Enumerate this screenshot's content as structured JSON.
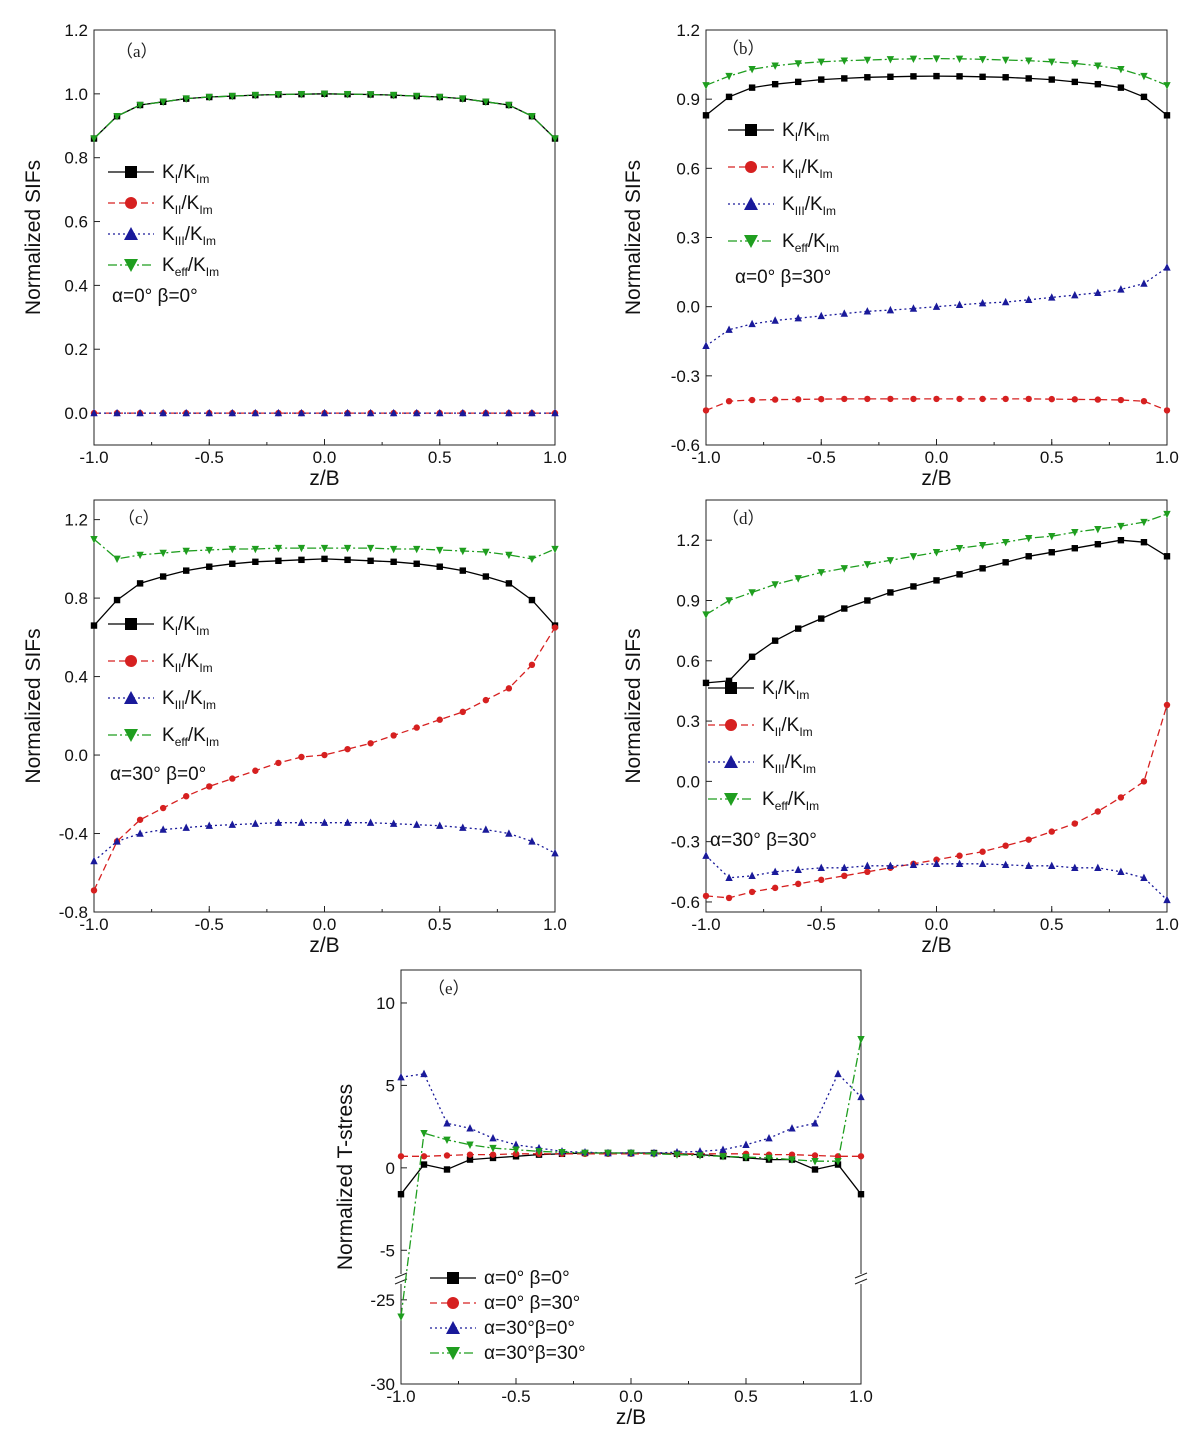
{
  "chart_data": [
    {
      "id": "a",
      "type": "line",
      "panel_label": "（a）",
      "xlabel": "z/B",
      "ylabel": "Normalized SIFs",
      "xlim": [
        -1.0,
        1.0
      ],
      "ylim": [
        -0.1,
        1.2
      ],
      "xticks": [
        "-1.0",
        "-0.5",
        "0.0",
        "0.5",
        "1.0"
      ],
      "yticks": [
        "0.0",
        "0.2",
        "0.4",
        "0.6",
        "0.8",
        "1.0",
        "1.2"
      ],
      "ytick_values": [
        0.0,
        0.2,
        0.4,
        0.6,
        0.8,
        1.0,
        1.2
      ],
      "annotation": "α=0° β=0°",
      "legend_position": "middle-left",
      "x": [
        -1.0,
        -0.9,
        -0.8,
        -0.7,
        -0.6,
        -0.5,
        -0.4,
        -0.3,
        -0.2,
        -0.1,
        0.0,
        0.1,
        0.2,
        0.3,
        0.4,
        0.5,
        0.6,
        0.7,
        0.8,
        0.9,
        1.0
      ],
      "series": [
        {
          "name": "KI/KIm",
          "base": "K",
          "sub": "I/K",
          "sub2": "Im",
          "color": "#000000",
          "dash": "",
          "marker": "square",
          "values": [
            0.86,
            0.93,
            0.965,
            0.975,
            0.985,
            0.99,
            0.993,
            0.996,
            0.998,
            0.999,
            1.0,
            0.999,
            0.998,
            0.996,
            0.993,
            0.99,
            0.985,
            0.975,
            0.965,
            0.93,
            0.86
          ]
        },
        {
          "name": "KII/KIm",
          "base": "K",
          "sub": "II/K",
          "sub2": "Im",
          "color": "#d62020",
          "dash": "7,4",
          "marker": "circle",
          "values": [
            0,
            0,
            0,
            0,
            0,
            0,
            0,
            0,
            0,
            0,
            0,
            0,
            0,
            0,
            0,
            0,
            0,
            0,
            0,
            0,
            0
          ]
        },
        {
          "name": "KIII/KIm",
          "base": "K",
          "sub": "III/K",
          "sub2": "Im",
          "color": "#1a1a9a",
          "dash": "2,3",
          "marker": "triangle",
          "values": [
            0,
            0,
            0,
            0,
            0,
            0,
            0,
            0,
            0,
            0,
            0,
            0,
            0,
            0,
            0,
            0,
            0,
            0,
            0,
            0,
            0
          ]
        },
        {
          "name": "Keff/KIm",
          "base": "K",
          "sub": "eff/K",
          "sub2": "Im",
          "color": "#1f9e1f",
          "dash": "9,3,2,3",
          "marker": "triangle-down",
          "values": [
            0.86,
            0.93,
            0.965,
            0.975,
            0.985,
            0.99,
            0.993,
            0.996,
            0.998,
            0.999,
            1.0,
            0.999,
            0.998,
            0.996,
            0.993,
            0.99,
            0.985,
            0.975,
            0.965,
            0.93,
            0.86
          ]
        }
      ]
    },
    {
      "id": "b",
      "type": "line",
      "panel_label": "（b）",
      "xlabel": "z/B",
      "ylabel": "Normalized SIFs",
      "xlim": [
        -1.0,
        1.0
      ],
      "ylim": [
        -0.6,
        1.2
      ],
      "xticks": [
        "-1.0",
        "-0.5",
        "0.0",
        "0.5",
        "1.0"
      ],
      "yticks": [
        "-0.6",
        "-0.3",
        "0.0",
        "0.3",
        "0.6",
        "0.9",
        "1.2"
      ],
      "ytick_values": [
        -0.6,
        -0.3,
        0.0,
        0.3,
        0.6,
        0.9,
        1.2
      ],
      "annotation": "α=0° β=30°",
      "legend_position": "middle-left",
      "x": [
        -1.0,
        -0.9,
        -0.8,
        -0.7,
        -0.6,
        -0.5,
        -0.4,
        -0.3,
        -0.2,
        -0.1,
        0.0,
        0.1,
        0.2,
        0.3,
        0.4,
        0.5,
        0.6,
        0.7,
        0.8,
        0.9,
        1.0
      ],
      "series": [
        {
          "name": "KI/KIm",
          "base": "K",
          "sub": "I/K",
          "sub2": "Im",
          "color": "#000000",
          "dash": "",
          "marker": "square",
          "values": [
            0.83,
            0.91,
            0.95,
            0.965,
            0.975,
            0.985,
            0.99,
            0.995,
            0.997,
            0.999,
            1.0,
            0.999,
            0.997,
            0.995,
            0.99,
            0.985,
            0.975,
            0.965,
            0.95,
            0.91,
            0.83
          ]
        },
        {
          "name": "KII/KIm",
          "base": "K",
          "sub": "II/K",
          "sub2": "Im",
          "color": "#d62020",
          "dash": "7,4",
          "marker": "circle",
          "values": [
            -0.45,
            -0.41,
            -0.405,
            -0.403,
            -0.402,
            -0.401,
            -0.4,
            -0.4,
            -0.4,
            -0.4,
            -0.4,
            -0.4,
            -0.4,
            -0.4,
            -0.4,
            -0.401,
            -0.402,
            -0.403,
            -0.405,
            -0.41,
            -0.45
          ]
        },
        {
          "name": "KIII/KIm",
          "base": "K",
          "sub": "III/K",
          "sub2": "Im",
          "color": "#1a1a9a",
          "dash": "2,3",
          "marker": "triangle",
          "values": [
            -0.17,
            -0.1,
            -0.075,
            -0.06,
            -0.05,
            -0.04,
            -0.03,
            -0.02,
            -0.015,
            -0.008,
            0.0,
            0.008,
            0.015,
            0.02,
            0.03,
            0.04,
            0.05,
            0.06,
            0.075,
            0.1,
            0.17
          ]
        },
        {
          "name": "Keff/KIm",
          "base": "K",
          "sub": "eff/K",
          "sub2": "Im",
          "color": "#1f9e1f",
          "dash": "9,3,2,3",
          "marker": "triangle-down",
          "values": [
            0.96,
            1.0,
            1.03,
            1.045,
            1.055,
            1.062,
            1.067,
            1.07,
            1.073,
            1.075,
            1.076,
            1.075,
            1.073,
            1.07,
            1.067,
            1.062,
            1.055,
            1.045,
            1.03,
            1.0,
            0.96
          ]
        }
      ]
    },
    {
      "id": "c",
      "type": "line",
      "panel_label": "（c）",
      "xlabel": "z/B",
      "ylabel": "Normalized SIFs",
      "xlim": [
        -1.0,
        1.0
      ],
      "ylim": [
        -0.8,
        1.3
      ],
      "xticks": [
        "-1.0",
        "-0.5",
        "0.0",
        "0.5",
        "1.0"
      ],
      "yticks": [
        "-0.8",
        "-0.4",
        "0.0",
        "0.4",
        "0.8",
        "1.2"
      ],
      "ytick_values": [
        -0.8,
        -0.4,
        0.0,
        0.4,
        0.8,
        1.2
      ],
      "annotation": "α=30° β=0°",
      "legend_position": "middle-left",
      "x": [
        -1.0,
        -0.9,
        -0.8,
        -0.7,
        -0.6,
        -0.5,
        -0.4,
        -0.3,
        -0.2,
        -0.1,
        0.0,
        0.1,
        0.2,
        0.3,
        0.4,
        0.5,
        0.6,
        0.7,
        0.8,
        0.9,
        1.0
      ],
      "series": [
        {
          "name": "KI/KIm",
          "base": "K",
          "sub": "I/K",
          "sub2": "Im",
          "color": "#000000",
          "dash": "",
          "marker": "square",
          "values": [
            0.66,
            0.79,
            0.875,
            0.91,
            0.94,
            0.96,
            0.975,
            0.985,
            0.99,
            0.995,
            1.0,
            0.995,
            0.99,
            0.985,
            0.975,
            0.96,
            0.94,
            0.91,
            0.875,
            0.79,
            0.66
          ]
        },
        {
          "name": "KII/KIm",
          "base": "K",
          "sub": "II/K",
          "sub2": "Im",
          "color": "#d62020",
          "dash": "7,4",
          "marker": "circle",
          "values": [
            -0.69,
            -0.44,
            -0.33,
            -0.27,
            -0.21,
            -0.16,
            -0.12,
            -0.08,
            -0.04,
            -0.01,
            0.0,
            0.03,
            0.06,
            0.1,
            0.14,
            0.18,
            0.22,
            0.28,
            0.34,
            0.46,
            0.65
          ]
        },
        {
          "name": "KIII/KIm",
          "base": "K",
          "sub": "III/K",
          "sub2": "Im",
          "color": "#1a1a9a",
          "dash": "2,3",
          "marker": "triangle",
          "values": [
            -0.54,
            -0.44,
            -0.4,
            -0.38,
            -0.37,
            -0.36,
            -0.355,
            -0.35,
            -0.345,
            -0.345,
            -0.345,
            -0.345,
            -0.345,
            -0.35,
            -0.355,
            -0.36,
            -0.37,
            -0.38,
            -0.4,
            -0.44,
            -0.5
          ]
        },
        {
          "name": "Keff/KIm",
          "base": "K",
          "sub": "eff/K",
          "sub2": "Im",
          "color": "#1f9e1f",
          "dash": "9,3,2,3",
          "marker": "triangle-down",
          "values": [
            1.1,
            1.0,
            1.02,
            1.03,
            1.04,
            1.045,
            1.05,
            1.05,
            1.055,
            1.055,
            1.055,
            1.055,
            1.055,
            1.05,
            1.05,
            1.045,
            1.04,
            1.035,
            1.02,
            1.0,
            1.05
          ]
        }
      ]
    },
    {
      "id": "d",
      "type": "line",
      "panel_label": "（d）",
      "xlabel": "z/B",
      "ylabel": "Normalized SIFs",
      "xlim": [
        -1.0,
        1.0
      ],
      "ylim": [
        -0.65,
        1.4
      ],
      "xticks": [
        "-1.0",
        "-0.5",
        "0.0",
        "0.5",
        "1.0"
      ],
      "yticks": [
        "-0.6",
        "-0.3",
        "0.0",
        "0.3",
        "0.6",
        "0.9",
        "1.2"
      ],
      "ytick_values": [
        -0.6,
        -0.3,
        0.0,
        0.3,
        0.6,
        0.9,
        1.2
      ],
      "annotation": "α=30° β=30°",
      "legend_position": "middle-left",
      "x": [
        -1.0,
        -0.9,
        -0.8,
        -0.7,
        -0.6,
        -0.5,
        -0.4,
        -0.3,
        -0.2,
        -0.1,
        0.0,
        0.1,
        0.2,
        0.3,
        0.4,
        0.5,
        0.6,
        0.7,
        0.8,
        0.9,
        1.0
      ],
      "series": [
        {
          "name": "KI/KIm",
          "base": "K",
          "sub": "I/K",
          "sub2": "Im",
          "color": "#000000",
          "dash": "",
          "marker": "square",
          "values": [
            0.49,
            0.5,
            0.62,
            0.7,
            0.76,
            0.81,
            0.86,
            0.9,
            0.94,
            0.97,
            1.0,
            1.03,
            1.06,
            1.09,
            1.12,
            1.14,
            1.16,
            1.18,
            1.2,
            1.19,
            1.12
          ]
        },
        {
          "name": "KII/KIm",
          "base": "K",
          "sub": "II/K",
          "sub2": "Im",
          "color": "#d62020",
          "dash": "7,4",
          "marker": "circle",
          "values": [
            -0.57,
            -0.58,
            -0.55,
            -0.53,
            -0.51,
            -0.49,
            -0.47,
            -0.45,
            -0.43,
            -0.41,
            -0.39,
            -0.37,
            -0.35,
            -0.32,
            -0.29,
            -0.25,
            -0.21,
            -0.15,
            -0.08,
            0.0,
            0.38
          ]
        },
        {
          "name": "KIII/KIm",
          "base": "K",
          "sub": "III/K",
          "sub2": "Im",
          "color": "#1a1a9a",
          "dash": "2,3",
          "marker": "triangle",
          "values": [
            -0.37,
            -0.48,
            -0.47,
            -0.45,
            -0.44,
            -0.43,
            -0.43,
            -0.42,
            -0.42,
            -0.415,
            -0.41,
            -0.41,
            -0.41,
            -0.415,
            -0.42,
            -0.42,
            -0.43,
            -0.43,
            -0.45,
            -0.48,
            -0.59
          ]
        },
        {
          "name": "Keff/KIm",
          "base": "K",
          "sub": "eff/K",
          "sub2": "Im",
          "color": "#1f9e1f",
          "dash": "9,3,2,3",
          "marker": "triangle-down",
          "values": [
            0.83,
            0.9,
            0.94,
            0.98,
            1.01,
            1.04,
            1.06,
            1.08,
            1.1,
            1.12,
            1.14,
            1.16,
            1.175,
            1.19,
            1.21,
            1.22,
            1.24,
            1.255,
            1.27,
            1.29,
            1.33
          ]
        }
      ]
    },
    {
      "id": "e",
      "type": "line",
      "panel_label": "（e）",
      "xlabel": "z/B",
      "ylabel": "Normalized T-stress",
      "xlim": [
        -1.0,
        1.0
      ],
      "broken_y_axis": true,
      "upper_ylim": [
        -6.5,
        12
      ],
      "lower_ylim": [
        -30,
        -24
      ],
      "xticks": [
        "-1.0",
        "-0.5",
        "0.0",
        "0.5",
        "1.0"
      ],
      "yticks_upper": [
        "-5",
        "0",
        "5",
        "10"
      ],
      "ytick_values_upper": [
        -5,
        0,
        5,
        10
      ],
      "yticks_lower": [
        "-25",
        "-30"
      ],
      "ytick_values_lower": [
        -25,
        -30
      ],
      "legend_position": "bottom-left",
      "x": [
        -1.0,
        -0.9,
        -0.8,
        -0.7,
        -0.6,
        -0.5,
        -0.4,
        -0.3,
        -0.2,
        -0.1,
        0.0,
        0.1,
        0.2,
        0.3,
        0.4,
        0.5,
        0.6,
        0.7,
        0.8,
        0.9,
        1.0
      ],
      "series": [
        {
          "name": "α=0° β=0°",
          "color": "#000000",
          "dash": "",
          "marker": "square",
          "values": [
            -1.6,
            0.2,
            -0.1,
            0.5,
            0.6,
            0.7,
            0.8,
            0.85,
            0.9,
            0.9,
            0.9,
            0.9,
            0.85,
            0.8,
            0.7,
            0.6,
            0.5,
            0.5,
            -0.1,
            0.2,
            -1.6
          ]
        },
        {
          "name": "α=0° β=30°",
          "color": "#d62020",
          "dash": "7,4",
          "marker": "circle",
          "values": [
            0.7,
            0.7,
            0.75,
            0.8,
            0.8,
            0.85,
            0.85,
            0.85,
            0.85,
            0.85,
            0.85,
            0.85,
            0.85,
            0.85,
            0.85,
            0.85,
            0.8,
            0.8,
            0.75,
            0.7,
            0.7
          ]
        },
        {
          "name": "α=30°β=0°",
          "color": "#1a1a9a",
          "dash": "2,3",
          "marker": "triangle",
          "values": [
            5.5,
            5.7,
            2.7,
            2.4,
            1.8,
            1.4,
            1.2,
            1.0,
            0.95,
            0.9,
            0.9,
            0.9,
            0.95,
            1.0,
            1.1,
            1.4,
            1.8,
            2.4,
            2.7,
            5.7,
            4.3
          ]
        },
        {
          "name": "α=30°β=30°",
          "color": "#1f9e1f",
          "dash": "9,3,2,3",
          "marker": "triangle-down",
          "values": [
            -26.0,
            2.1,
            1.7,
            1.4,
            1.2,
            1.1,
            1.0,
            0.95,
            0.9,
            0.9,
            0.9,
            0.85,
            0.8,
            0.75,
            0.7,
            0.65,
            0.6,
            0.5,
            0.4,
            0.4,
            7.8
          ]
        }
      ]
    }
  ]
}
